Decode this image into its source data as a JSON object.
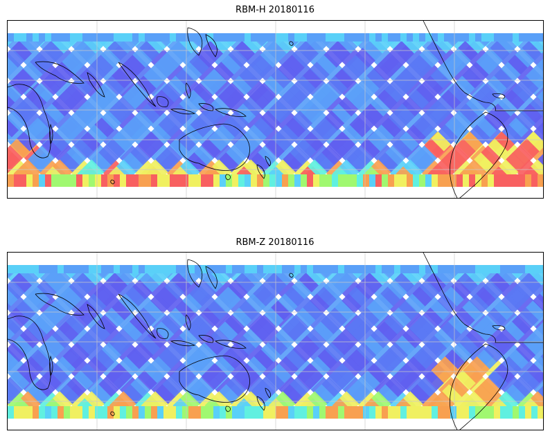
{
  "panels": [
    {
      "title": "RBM-H 20180116",
      "swath_palette": [
        "#6060f0",
        "#5a78f4",
        "#5aa0f8",
        "#5ad0f8",
        "#60f0e0",
        "#a0f870",
        "#f0f060",
        "#f8a050",
        "#f86060"
      ],
      "high_value_regions": [
        "southern-ocean-west",
        "southern-ocean-central",
        "south-atlantic",
        "south-america-east"
      ]
    },
    {
      "title": "RBM-Z 20180116",
      "swath_palette": [
        "#6060f0",
        "#5a78f4",
        "#5aa0f8",
        "#5ad0f8",
        "#60f0e0",
        "#a0f870",
        "#f0f060",
        "#f8a050"
      ],
      "high_value_regions": [
        "south-america-east"
      ]
    }
  ],
  "colors": {
    "coastline": "#000000",
    "gridline": "#c8c8c8",
    "frame": "#000000"
  }
}
